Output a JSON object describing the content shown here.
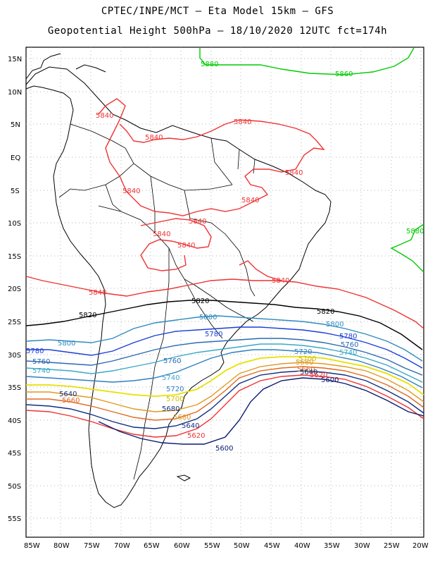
{
  "title_line1": "CPTEC/INPE/MCT –  Eta Model 15km – GFS",
  "title_line2": "Geopotential Height 500hPa – 18/10/2020 12UTC fct=174h",
  "lat_labels": [
    "15N",
    "10N",
    "5N",
    "EQ",
    "5S",
    "10S",
    "15S",
    "20S",
    "25S",
    "30S",
    "35S",
    "40S",
    "45S",
    "50S",
    "55S"
  ],
  "lon_labels": [
    "85W",
    "80W",
    "75W",
    "70W",
    "65W",
    "60W",
    "55W",
    "50W",
    "45W",
    "40W",
    "35W",
    "30W",
    "25W",
    "20W"
  ],
  "contour_labels": [
    {
      "text": "5880",
      "color": "#00cc00"
    },
    {
      "text": "5860",
      "color": "#00cc00"
    },
    {
      "text": "5880",
      "color": "#00cc00"
    },
    {
      "text": "5840",
      "color": "#ee3333"
    },
    {
      "text": "5840",
      "color": "#ee3333"
    },
    {
      "text": "5840",
      "color": "#ee3333"
    },
    {
      "text": "5840",
      "color": "#ee3333"
    },
    {
      "text": "5840",
      "color": "#ee3333"
    },
    {
      "text": "5840",
      "color": "#ee3333"
    },
    {
      "text": "5840",
      "color": "#ee3333"
    },
    {
      "text": "5840",
      "color": "#ee3333"
    },
    {
      "text": "5840",
      "color": "#ee3333"
    },
    {
      "text": "5840",
      "color": "#ee3333"
    },
    {
      "text": "5840",
      "color": "#ee3333"
    },
    {
      "text": "5820",
      "color": "#000000"
    },
    {
      "text": "5820",
      "color": "#000000"
    },
    {
      "text": "5820",
      "color": "#000000"
    },
    {
      "text": "5800",
      "color": "#2e8bbf"
    },
    {
      "text": "5800",
      "color": "#2e8bbf"
    },
    {
      "text": "5800",
      "color": "#2e8bbf"
    },
    {
      "text": "5780",
      "color": "#1a3fd6"
    },
    {
      "text": "5780",
      "color": "#1a3fd6"
    },
    {
      "text": "5780",
      "color": "#1a3fd6"
    },
    {
      "text": "5760",
      "color": "#2a6ab0"
    },
    {
      "text": "5760",
      "color": "#2a6ab0"
    },
    {
      "text": "5760",
      "color": "#2a6ab0"
    },
    {
      "text": "5740",
      "color": "#3aa8c8"
    },
    {
      "text": "5740",
      "color": "#3aa8c8"
    },
    {
      "text": "5740",
      "color": "#3aa8c8"
    },
    {
      "text": "5720",
      "color": "#2f7fc0"
    },
    {
      "text": "5720",
      "color": "#2f7fc0"
    },
    {
      "text": "5700",
      "color": "#e8e000"
    },
    {
      "text": "5700",
      "color": "#e8e000"
    },
    {
      "text": "5680",
      "color": "#e09a20"
    },
    {
      "text": "5680",
      "color": "#e09a20"
    },
    {
      "text": "5680",
      "color": "#e09a20"
    },
    {
      "text": "5660",
      "color": "#e06a20"
    },
    {
      "text": "5660",
      "color": "#e06a20"
    },
    {
      "text": "5640",
      "color": "#103080"
    },
    {
      "text": "5640",
      "color": "#103080"
    },
    {
      "text": "5640",
      "color": "#103080"
    },
    {
      "text": "5620",
      "color": "#ee3333"
    },
    {
      "text": "5620",
      "color": "#ee3333"
    },
    {
      "text": "5600",
      "color": "#0a1a70"
    },
    {
      "text": "5600",
      "color": "#0a1a70"
    }
  ]
}
